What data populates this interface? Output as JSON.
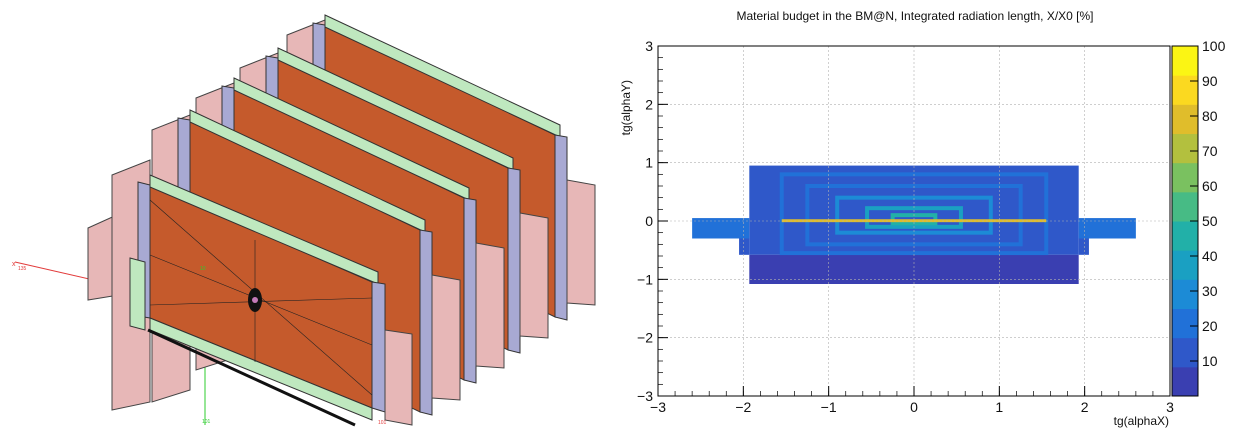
{
  "geometry_view": {
    "axis_labels": [
      "x",
      "135",
      "10",
      "101",
      "101"
    ]
  },
  "chart_data": {
    "type": "heatmap",
    "title": "Material budget in the BM@N, Integrated radiation length, X/X0 [%]",
    "xlabel": "tg(alphaX)",
    "ylabel": "tg(alphaY)",
    "xlim": [
      -3,
      3
    ],
    "ylim": [
      -3,
      3
    ],
    "x_ticks": [
      "−3",
      "−2",
      "−1",
      "0",
      "1",
      "2",
      "3"
    ],
    "y_ticks": [
      "−3",
      "−2",
      "−1",
      "0",
      "1",
      "2",
      "3"
    ],
    "grid": true,
    "colorbar": {
      "min": 0,
      "max": 100,
      "ticks": [
        "10",
        "20",
        "30",
        "40",
        "50",
        "60",
        "70",
        "80",
        "90",
        "100"
      ],
      "colors": [
        "#3a3fb1",
        "#2f58c9",
        "#2171d8",
        "#1c8bd6",
        "#1aa0c2",
        "#22b0a8",
        "#47bb85",
        "#7ac160",
        "#b3c03e",
        "#e0bd2b",
        "#fbd920",
        "#fbf514"
      ]
    },
    "regions": [
      {
        "name": "outer-body",
        "x": [
          -1.93,
          1.93
        ],
        "y": [
          -0.58,
          0.95
        ],
        "value": 12
      },
      {
        "name": "wing-left",
        "x": [
          -2.6,
          -1.93
        ],
        "y": [
          -0.3,
          0.05
        ],
        "value": 20
      },
      {
        "name": "wing-right",
        "x": [
          1.93,
          2.6
        ],
        "y": [
          -0.3,
          0.05
        ],
        "value": 20
      },
      {
        "name": "lower-left-block",
        "x": [
          -2.05,
          -1.93
        ],
        "y": [
          -0.58,
          -0.3
        ],
        "value": 12
      },
      {
        "name": "lower-right-block",
        "x": [
          1.93,
          2.05
        ],
        "y": [
          -0.58,
          -0.3
        ],
        "value": 12
      },
      {
        "name": "bottom-band",
        "x": [
          -1.93,
          1.93
        ],
        "y": [
          -1.08,
          -0.58
        ],
        "value": 4
      },
      {
        "name": "frame-1",
        "x": [
          -1.55,
          1.55
        ],
        "y": [
          -0.55,
          0.8
        ],
        "value": 18
      },
      {
        "name": "frame-2",
        "x": [
          -1.25,
          1.25
        ],
        "y": [
          -0.4,
          0.6
        ],
        "value": 24
      },
      {
        "name": "frame-3",
        "x": [
          -0.9,
          0.9
        ],
        "y": [
          -0.2,
          0.4
        ],
        "value": 30
      },
      {
        "name": "frame-4",
        "x": [
          -0.55,
          0.55
        ],
        "y": [
          -0.1,
          0.22
        ],
        "value": 36
      },
      {
        "name": "frame-5",
        "x": [
          -0.25,
          0.25
        ],
        "y": [
          -0.04,
          0.1
        ],
        "value": 42
      },
      {
        "name": "midplane-line",
        "x": [
          -1.55,
          1.55
        ],
        "y": [
          -0.02,
          0.03
        ],
        "value": 80
      }
    ]
  }
}
